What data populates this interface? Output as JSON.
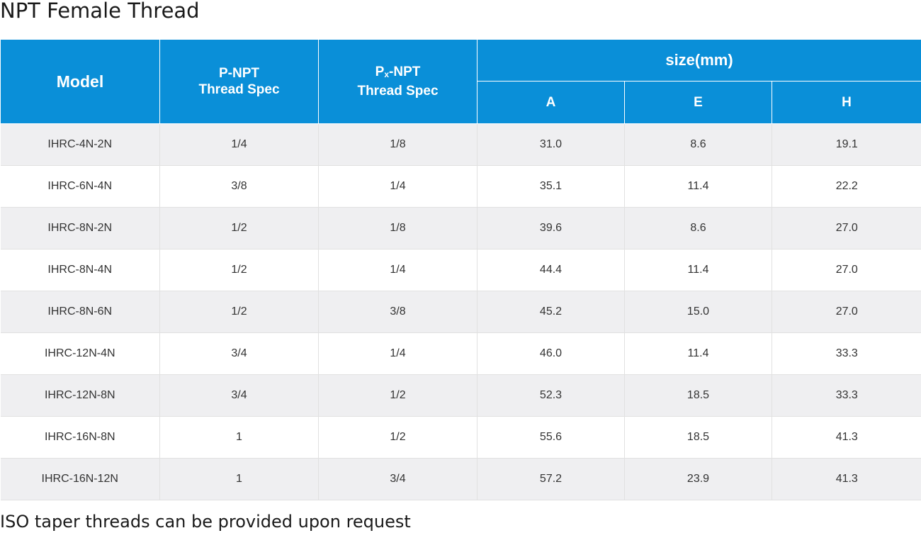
{
  "title": "NPT Female Thread",
  "table": {
    "headers": {
      "model": "Model",
      "p_npt_line1": "P-NPT",
      "p_npt_line2": "Thread Spec",
      "px_p": "P",
      "px_x": "x",
      "px_npt": "-NPT",
      "px_line2": "Thread Spec",
      "size_group": "size(mm)",
      "a": "A",
      "e": "E",
      "h": "H"
    },
    "rows": [
      {
        "model": "IHRC-4N-2N",
        "p_npt": "1/4",
        "px_npt": "1/8",
        "a": "31.0",
        "e": "8.6",
        "h": "19.1"
      },
      {
        "model": "IHRC-6N-4N",
        "p_npt": "3/8",
        "px_npt": "1/4",
        "a": "35.1",
        "e": "11.4",
        "h": "22.2"
      },
      {
        "model": "IHRC-8N-2N",
        "p_npt": "1/2",
        "px_npt": "1/8",
        "a": "39.6",
        "e": "8.6",
        "h": "27.0"
      },
      {
        "model": "IHRC-8N-4N",
        "p_npt": "1/2",
        "px_npt": "1/4",
        "a": "44.4",
        "e": "11.4",
        "h": "27.0"
      },
      {
        "model": "IHRC-8N-6N",
        "p_npt": "1/2",
        "px_npt": "3/8",
        "a": "45.2",
        "e": "15.0",
        "h": "27.0"
      },
      {
        "model": "IHRC-12N-4N",
        "p_npt": "3/4",
        "px_npt": "1/4",
        "a": "46.0",
        "e": "11.4",
        "h": "33.3"
      },
      {
        "model": "IHRC-12N-8N",
        "p_npt": "3/4",
        "px_npt": "1/2",
        "a": "52.3",
        "e": "18.5",
        "h": "33.3"
      },
      {
        "model": "IHRC-16N-8N",
        "p_npt": "1",
        "px_npt": "1/2",
        "a": "55.6",
        "e": "18.5",
        "h": "41.3"
      },
      {
        "model": "IHRC-16N-12N",
        "p_npt": "1",
        "px_npt": "3/4",
        "a": "57.2",
        "e": "23.9",
        "h": "41.3"
      }
    ]
  },
  "footnote": "ISO taper threads can be provided upon request",
  "colors": {
    "header_bg": "#0a8fd8",
    "header_text": "#ffffff",
    "row_odd_bg": "#efeff1",
    "row_even_bg": "#ffffff",
    "cell_text": "#333333"
  }
}
